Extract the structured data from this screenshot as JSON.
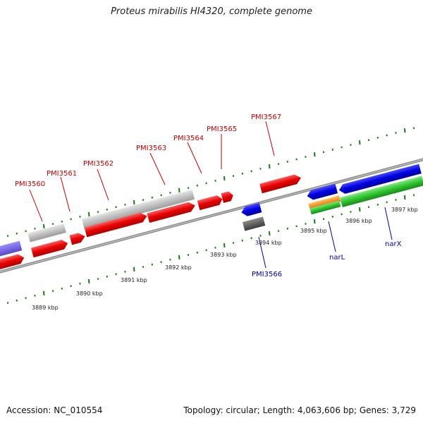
{
  "title": "Proteus mirabilis HI4320, complete genome",
  "footer": {
    "accession": "Accession: NC_010554",
    "summary": "Topology: circular; Length: 4,063,606 bp; Genes: 3,729"
  },
  "colors": {
    "forward_label": "#cc0000",
    "reverse_label": "#0000aa",
    "backbone": "#808080",
    "tick": "#1a7a1a"
  },
  "scale_labels": [
    "3889 kbp",
    "3890 kbp",
    "3891 kbp",
    "3892 kbp",
    "3893 kbp",
    "3894 kbp",
    "3895 kbp",
    "3896 kbp",
    "3897 kbp"
  ],
  "forward_gene_labels": [
    "PMI3560",
    "PMI3561",
    "PMI3562",
    "PMI3563",
    "PMI3564",
    "PMI3565",
    "PMI3567"
  ],
  "reverse_gene_labels": [
    "PMI3566",
    "narL",
    "narX"
  ]
}
